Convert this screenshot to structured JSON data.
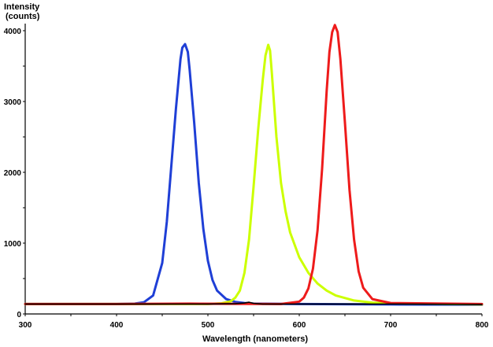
{
  "chart_data": {
    "type": "line",
    "ylabel_line1": "Intensity",
    "ylabel_line2": "(counts)",
    "xlabel": "Wavelength (nanometers)",
    "xlim": [
      300,
      800
    ],
    "ylim": [
      0,
      4100
    ],
    "x_ticks": [
      "300",
      "400",
      "500",
      "600",
      "700",
      "800"
    ],
    "y_ticks": [
      "0",
      "1000",
      "2000",
      "3000",
      "4000"
    ],
    "x_tick_values": [
      300,
      400,
      500,
      600,
      700,
      800
    ],
    "y_tick_values": [
      0,
      1000,
      2000,
      3000,
      4000
    ],
    "grid": false,
    "legend": "none",
    "series": [
      {
        "color": "#1f3fd6",
        "x": [
          300,
          400,
          420,
          430,
          440,
          450,
          455,
          460,
          465,
          470,
          472,
          475,
          478,
          480,
          485,
          490,
          495,
          500,
          505,
          510,
          520,
          530,
          540,
          550,
          600,
          700,
          800
        ],
        "y": [
          140,
          140,
          145,
          165,
          260,
          720,
          1300,
          2100,
          2900,
          3600,
          3760,
          3810,
          3700,
          3450,
          2700,
          1850,
          1200,
          750,
          480,
          330,
          210,
          170,
          155,
          145,
          140,
          135,
          130
        ]
      },
      {
        "color": "#ccff00",
        "x": [
          300,
          500,
          515,
          525,
          530,
          535,
          540,
          545,
          550,
          555,
          560,
          563,
          566,
          568,
          570,
          575,
          580,
          585,
          590,
          600,
          610,
          620,
          630,
          640,
          660,
          680,
          700,
          800
        ],
        "y": [
          140,
          140,
          150,
          180,
          230,
          330,
          580,
          1050,
          1800,
          2600,
          3300,
          3650,
          3800,
          3720,
          3400,
          2500,
          1850,
          1450,
          1150,
          800,
          580,
          430,
          330,
          260,
          190,
          160,
          150,
          135
        ]
      },
      {
        "color": "#ee1b1b",
        "x": [
          300,
          400,
          480,
          580,
          600,
          605,
          610,
          615,
          620,
          625,
          630,
          633,
          636,
          639,
          642,
          645,
          650,
          655,
          660,
          665,
          670,
          680,
          700,
          800
        ],
        "y": [
          140,
          140,
          145,
          140,
          175,
          230,
          360,
          640,
          1180,
          2050,
          3150,
          3700,
          3980,
          4080,
          3980,
          3600,
          2700,
          1750,
          1050,
          600,
          370,
          210,
          155,
          140
        ]
      },
      {
        "color": "#000000",
        "x": [
          300,
          400,
          500,
          530,
          540,
          545,
          550,
          560,
          600,
          700,
          800
        ],
        "y": [
          140,
          140,
          140,
          145,
          155,
          165,
          150,
          140,
          140,
          140,
          135
        ]
      }
    ]
  }
}
